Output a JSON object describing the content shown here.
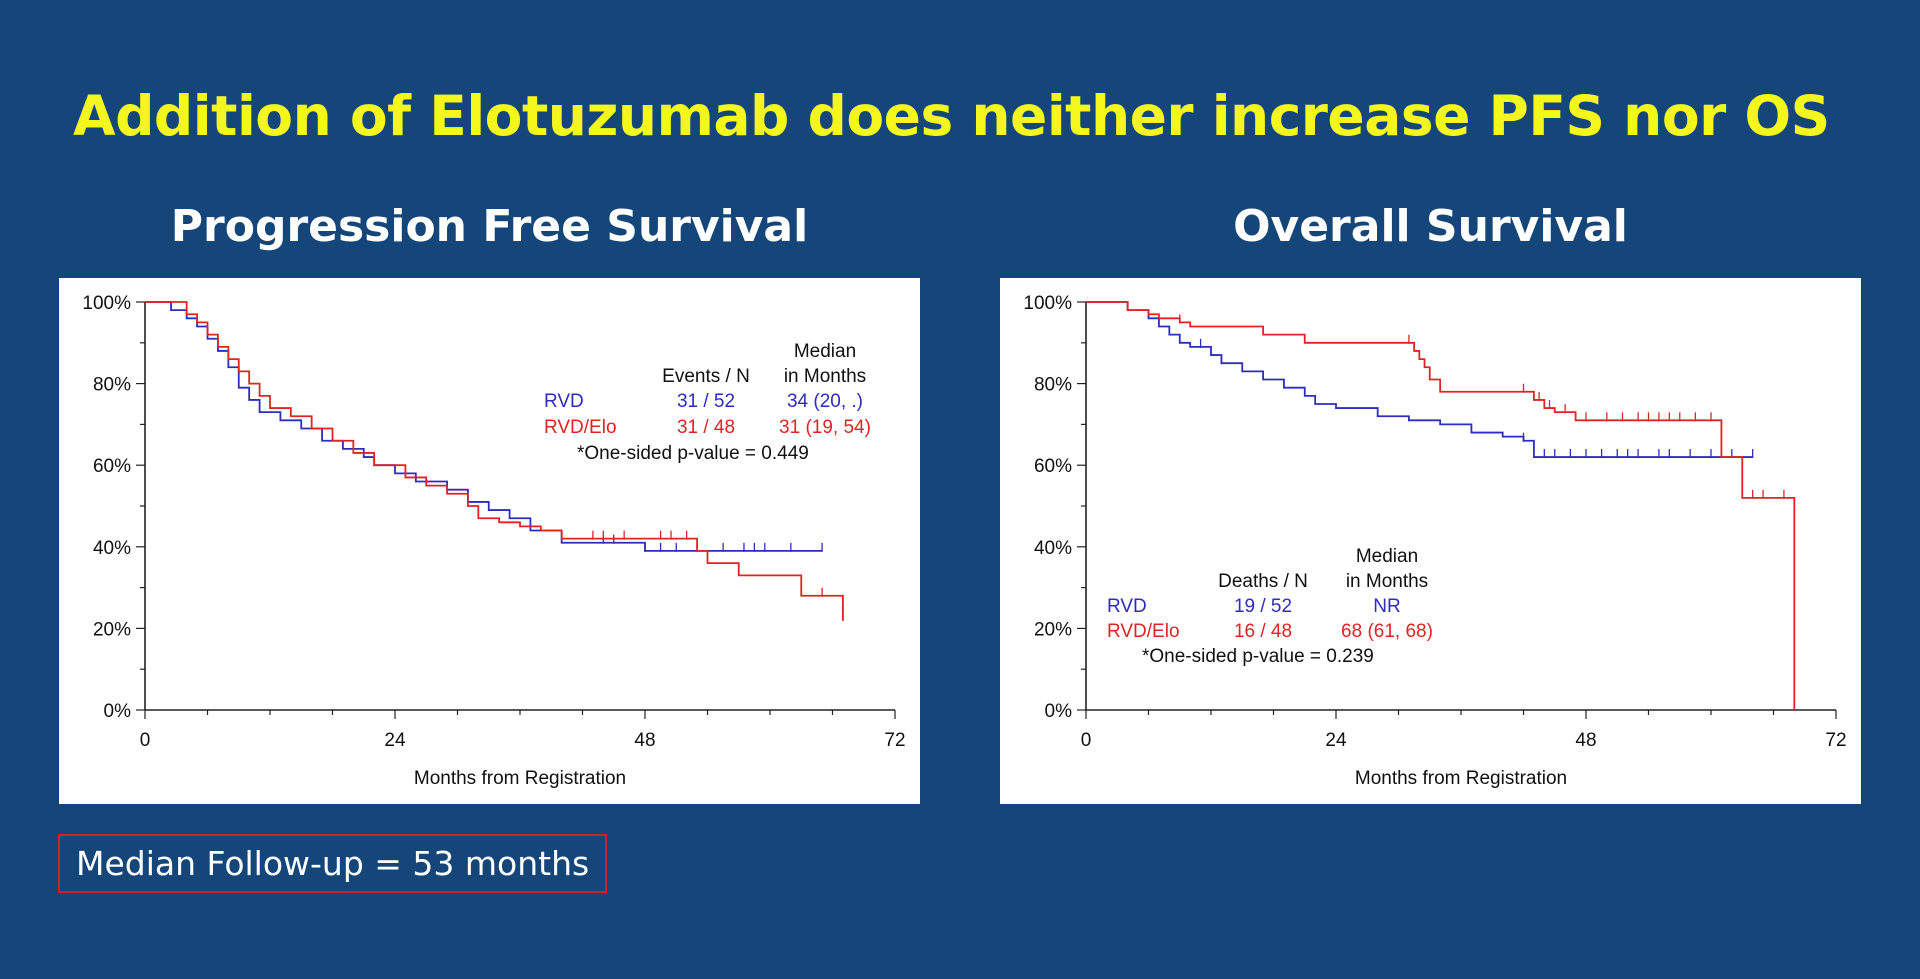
{
  "slide": {
    "title": "Addition of Elotuzumab does neither increase PFS nor OS",
    "footnote": "Median Follow-up = 53 months"
  },
  "colors": {
    "background": "#15467a",
    "title": "#f4f71c",
    "rvd": "#2c2cc0",
    "rvd_elo": "#e02424",
    "box_border": "#d0202a"
  },
  "chart_data": [
    {
      "type": "line",
      "title": "Progression Free Survival",
      "xlabel": "Months from Registration",
      "ylabel": "",
      "xlim": [
        0,
        72
      ],
      "ylim": [
        0,
        100
      ],
      "xticks": [
        "0",
        "24",
        "48",
        "72"
      ],
      "yticks": [
        "0%",
        "20%",
        "40%",
        "60%",
        "80%",
        "100%"
      ],
      "grid": false,
      "legend": {
        "header_events": "Events / N",
        "header_median_1": "Median",
        "header_median_2": "in Months",
        "rows": [
          {
            "name": "RVD",
            "events": "31 / 52",
            "median": "34 (20, .)",
            "color": "#2c2cc0"
          },
          {
            "name": "RVD/Elo",
            "events": "31 / 48",
            "median": "31 (19, 54)",
            "color": "#e02424"
          }
        ],
        "pvalue": "*One-sided p-value = 0.449"
      },
      "series": [
        {
          "name": "RVD",
          "color": "#2c2cc0",
          "x": [
            0,
            2.5,
            4,
            5,
            6,
            7,
            8,
            9,
            10,
            11,
            13,
            15,
            17,
            19,
            21,
            22,
            24,
            26,
            29,
            31,
            33,
            35,
            37,
            40,
            48,
            55,
            65
          ],
          "y": [
            100,
            98,
            96,
            94,
            91,
            88,
            84,
            79,
            76,
            73,
            71,
            69,
            66,
            64,
            62,
            60,
            58,
            56,
            54,
            51,
            49,
            47,
            44,
            41,
            39,
            39,
            39
          ],
          "censor_x": [
            44,
            45,
            48,
            49.5,
            51,
            53,
            55.5,
            57.5,
            58.5,
            59.5,
            62,
            65
          ]
        },
        {
          "name": "RVD/Elo",
          "color": "#e02424",
          "x": [
            0,
            4,
            5,
            6,
            7,
            8,
            9,
            10,
            11,
            12,
            14,
            16,
            18,
            20,
            22,
            25,
            27,
            29,
            31,
            32,
            34,
            36,
            38,
            40,
            46,
            49,
            53,
            54,
            57,
            63,
            67
          ],
          "y": [
            100,
            97,
            95,
            92,
            89,
            86,
            83,
            80,
            77,
            74,
            72,
            69,
            66,
            63,
            60,
            57,
            55,
            53,
            50,
            47,
            46,
            45,
            44,
            42,
            42,
            42,
            39,
            36,
            33,
            28,
            22
          ],
          "censor_x": [
            43,
            44,
            46,
            49.5,
            50.5,
            52,
            65,
            67
          ]
        }
      ]
    },
    {
      "type": "line",
      "title": "Overall Survival",
      "xlabel": "Months from Registration",
      "ylabel": "",
      "xlim": [
        0,
        72
      ],
      "ylim": [
        0,
        100
      ],
      "xticks": [
        "0",
        "24",
        "48",
        "72"
      ],
      "yticks": [
        "0%",
        "20%",
        "40%",
        "60%",
        "80%",
        "100%"
      ],
      "grid": false,
      "legend": {
        "header_events": "Deaths / N",
        "header_median_1": "Median",
        "header_median_2": "in Months",
        "rows": [
          {
            "name": "RVD",
            "events": "19 / 52",
            "median": "NR",
            "color": "#2c2cc0"
          },
          {
            "name": "RVD/Elo",
            "events": "16 / 48",
            "median": "68 (61, 68)",
            "color": "#e02424"
          }
        ],
        "pvalue": "*One-sided p-value = 0.239"
      },
      "series": [
        {
          "name": "RVD",
          "color": "#2c2cc0",
          "x": [
            0,
            4,
            6,
            7,
            8,
            9,
            10,
            12,
            13,
            15,
            17,
            19,
            21,
            22,
            24,
            28,
            31,
            34,
            37,
            40,
            42,
            43,
            64
          ],
          "y": [
            100,
            98,
            96,
            94,
            92,
            90,
            89,
            87,
            85,
            83,
            81,
            79,
            77,
            75,
            74,
            72,
            71,
            70,
            68,
            67,
            66,
            62,
            62
          ],
          "censor_x": [
            11,
            13,
            42,
            44,
            45,
            46.5,
            48,
            49.5,
            51,
            52,
            53,
            55,
            56,
            58,
            60,
            62,
            64
          ]
        },
        {
          "name": "RVD/Elo",
          "color": "#e02424",
          "x": [
            0,
            4,
            6,
            7,
            9,
            10,
            12,
            14,
            17,
            21,
            31,
            31.5,
            32,
            32.5,
            33,
            34,
            36,
            40,
            43,
            44,
            45,
            47,
            49,
            61,
            63,
            68
          ],
          "y": [
            100,
            98,
            97,
            96,
            95,
            94,
            94,
            94,
            92,
            90,
            90,
            88,
            86,
            84,
            81,
            78,
            78,
            78,
            76,
            74,
            73,
            71,
            71,
            62,
            52,
            0
          ],
          "censor_x": [
            9,
            31,
            42,
            43.5,
            44.5,
            46,
            48,
            50,
            51.5,
            53,
            54,
            55,
            56,
            57,
            58.5,
            60,
            64,
            65,
            67
          ]
        }
      ]
    }
  ]
}
